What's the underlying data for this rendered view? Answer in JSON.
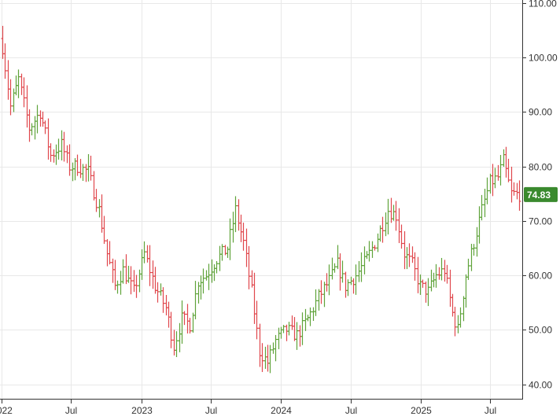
{
  "chart_data": {
    "type": "ohlc",
    "y_axis": {
      "range": [
        37,
        111
      ],
      "ticks": [
        40,
        50,
        60,
        70,
        80,
        90,
        100,
        110
      ],
      "tick_labels": [
        "40.00",
        "50.00",
        "60.00",
        "70.00",
        "80.00",
        "90.00",
        "100.00",
        "110.00"
      ],
      "position": "right"
    },
    "x_axis": {
      "start": "2022-01-03",
      "end": "2025-09-17",
      "ticks": [
        "2022-01-01",
        "2022-07-01",
        "2023-01-01",
        "2023-07-01",
        "2024-01-01",
        "2024-07-01",
        "2025-01-01",
        "2025-07-01"
      ],
      "tick_labels": [
        "2022",
        "Jul",
        "2023",
        "Jul",
        "2024",
        "Jul",
        "2025",
        "Jul"
      ]
    },
    "grid": true,
    "last_price": {
      "label": "74.83",
      "value": 74.83
    },
    "colors": {
      "up": "#5fa33a",
      "down": "#e0474c",
      "badge": "#3a8a2e",
      "grid": "#e8e8e8",
      "axis": "#333333"
    },
    "anchors": [
      [
        "2022-01-03",
        102
      ],
      [
        "2022-01-24",
        91
      ],
      [
        "2022-02-14",
        96
      ],
      [
        "2022-03-14",
        87
      ],
      [
        "2022-04-11",
        90
      ],
      [
        "2022-05-09",
        82
      ],
      [
        "2022-06-06",
        84
      ],
      [
        "2022-06-27",
        80
      ],
      [
        "2022-07-18",
        80
      ],
      [
        "2022-08-15",
        79
      ],
      [
        "2022-09-12",
        72
      ],
      [
        "2022-10-03",
        64
      ],
      [
        "2022-10-24",
        58
      ],
      [
        "2022-11-14",
        61
      ],
      [
        "2022-12-12",
        57
      ],
      [
        "2023-01-09",
        64
      ],
      [
        "2023-02-06",
        58
      ],
      [
        "2023-03-06",
        54
      ],
      [
        "2023-03-27",
        47
      ],
      [
        "2023-04-17",
        52
      ],
      [
        "2023-05-08",
        51
      ],
      [
        "2023-05-29",
        59
      ],
      [
        "2023-06-19",
        60
      ],
      [
        "2023-07-17",
        63
      ],
      [
        "2023-08-14",
        65
      ],
      [
        "2023-09-04",
        72
      ],
      [
        "2023-09-25",
        66
      ],
      [
        "2023-10-16",
        57
      ],
      [
        "2023-11-06",
        46
      ],
      [
        "2023-11-27",
        44
      ],
      [
        "2023-12-18",
        48
      ],
      [
        "2024-01-15",
        50
      ],
      [
        "2024-02-12",
        49
      ],
      [
        "2024-03-11",
        52
      ],
      [
        "2024-04-08",
        56
      ],
      [
        "2024-05-06",
        59
      ],
      [
        "2024-05-27",
        62
      ],
      [
        "2024-06-17",
        58
      ],
      [
        "2024-07-15",
        60
      ],
      [
        "2024-08-12",
        63
      ],
      [
        "2024-09-09",
        67
      ],
      [
        "2024-10-07",
        72
      ],
      [
        "2024-10-28",
        71
      ],
      [
        "2024-11-18",
        64
      ],
      [
        "2024-12-09",
        62
      ],
      [
        "2024-12-30",
        58
      ],
      [
        "2025-01-20",
        57
      ],
      [
        "2025-02-10",
        60
      ],
      [
        "2025-03-03",
        61
      ],
      [
        "2025-03-24",
        53
      ],
      [
        "2025-04-07",
        50
      ],
      [
        "2025-04-28",
        60
      ],
      [
        "2025-05-19",
        66
      ],
      [
        "2025-06-09",
        72
      ],
      [
        "2025-06-30",
        77
      ],
      [
        "2025-07-21",
        78
      ],
      [
        "2025-08-04",
        81
      ],
      [
        "2025-08-25",
        75
      ],
      [
        "2025-09-17",
        74.83
      ]
    ]
  }
}
